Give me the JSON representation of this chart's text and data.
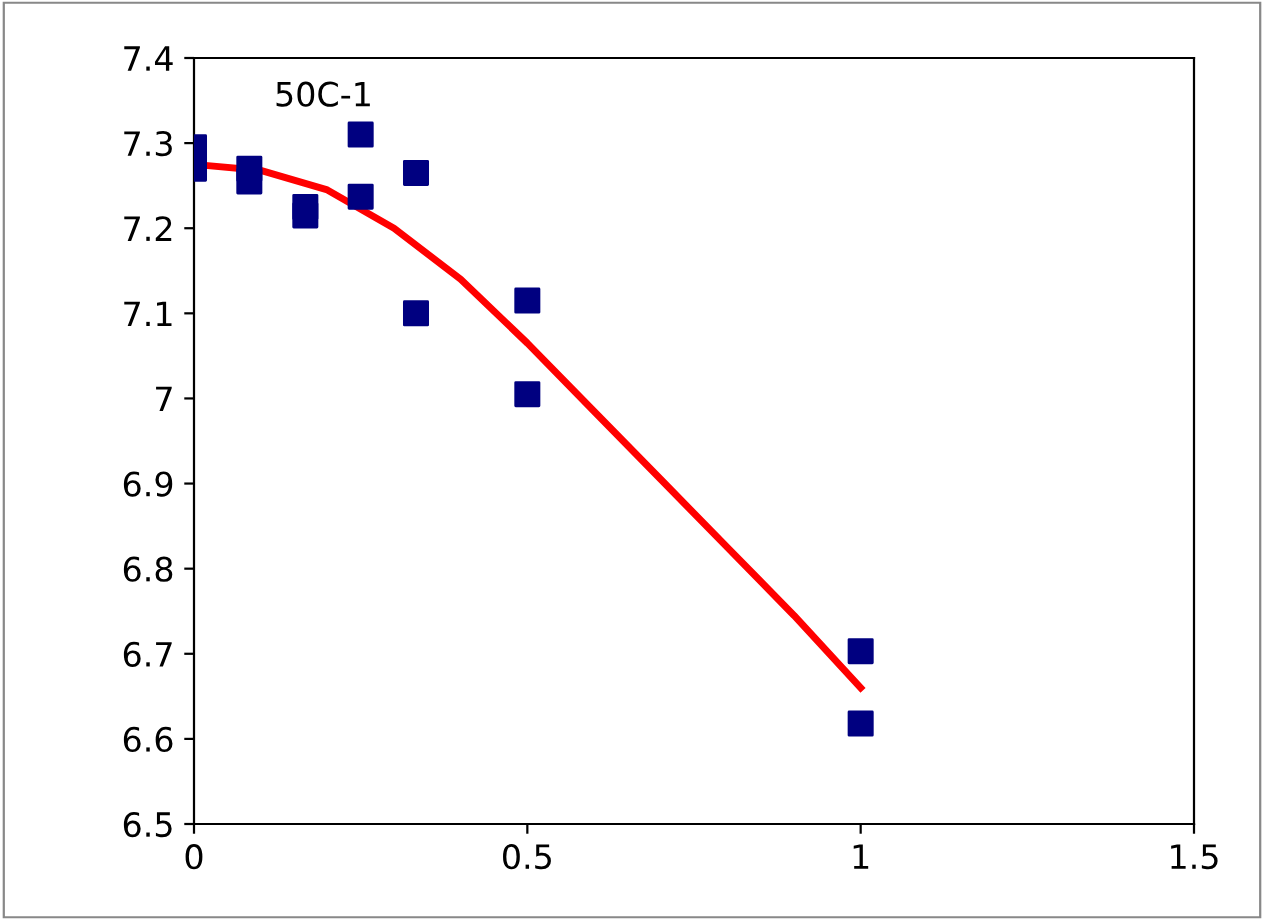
{
  "chart_data": {
    "type": "scatter",
    "annotations": [
      "50C-1"
    ],
    "xlim": [
      0,
      1.5
    ],
    "xticks": [
      0,
      0.5,
      1,
      1.5
    ],
    "ylim": [
      6.5,
      7.4
    ],
    "yticks": [
      6.5,
      6.6,
      6.7,
      6.8,
      6.9,
      7,
      7.1,
      7.2,
      7.3,
      7.4
    ],
    "grid": false,
    "legend": false,
    "series": [
      {
        "color": "#000080",
        "marker": "square",
        "x": [
          0,
          0,
          0.083,
          0.083,
          0.167,
          0.167,
          0.25,
          0.25,
          0.333,
          0.333,
          0.5,
          0.5,
          1,
          1
        ],
        "values": [
          7.295,
          7.27,
          7.27,
          7.255,
          7.225,
          7.215,
          7.31,
          7.237,
          7.265,
          7.1,
          7.115,
          7.005,
          6.703,
          6.618
        ]
      },
      {
        "type": "line",
        "color": "#ff0000",
        "marker": "none",
        "line_style": "solid",
        "x": [
          0,
          0.1,
          0.2,
          0.3,
          0.4,
          0.5,
          0.6,
          0.7,
          0.8,
          0.9,
          1
        ],
        "values": [
          7.275,
          7.268,
          7.245,
          7.2,
          7.14,
          7.065,
          6.985,
          6.905,
          6.825,
          6.745,
          6.66
        ]
      }
    ]
  }
}
